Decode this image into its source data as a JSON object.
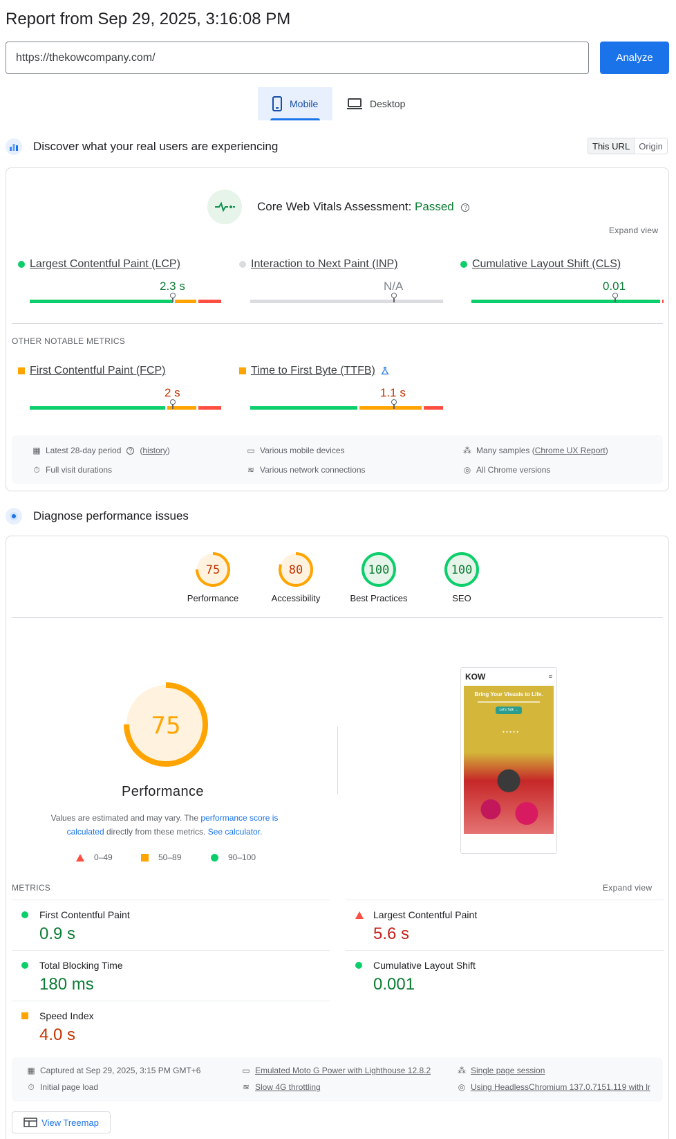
{
  "header": {
    "title": "Report from Sep 29, 2025, 3:16:08 PM",
    "url_value": "https://thekowcompany.com/",
    "analyze_label": "Analyze",
    "tabs": [
      {
        "label": "Mobile",
        "icon": "phone-icon",
        "active": true
      },
      {
        "label": "Desktop",
        "icon": "laptop-icon",
        "active": false
      }
    ]
  },
  "field": {
    "heading": "Discover what your real users are experiencing",
    "toggle": [
      "This URL",
      "Origin"
    ],
    "assessment_label": "Core Web Vitals Assessment: ",
    "assessment_status": "Passed",
    "expand_label": "Expand view",
    "core_metrics": [
      {
        "name": "Largest Contentful Paint (LCP)",
        "value": "2.3 s",
        "status": "good",
        "position": 0.75,
        "dist": [
          0.75,
          0.12,
          0.13
        ]
      },
      {
        "name": "Interaction to Next Paint (INP)",
        "value": "N/A",
        "status": "na",
        "position": 0.75
      },
      {
        "name": "Cumulative Layout Shift (CLS)",
        "value": "0.01",
        "status": "good",
        "position": 0.75,
        "dist": [
          0.99,
          0.0,
          0.01
        ]
      }
    ],
    "other_label": "OTHER NOTABLE METRICS",
    "other_metrics": [
      {
        "name": "First Contentful Paint (FCP)",
        "value": "2 s",
        "status": "average",
        "position": 0.75,
        "dist": [
          0.71,
          0.16,
          0.13
        ]
      },
      {
        "name": "Time to First Byte (TTFB)",
        "value": "1.1 s",
        "status": "average",
        "position": 0.75,
        "dist": [
          0.56,
          0.34,
          0.1
        ]
      }
    ],
    "info": {
      "period": "Latest 28-day period",
      "history": "history",
      "devices": "Various mobile devices",
      "samples_prefix": "Many samples (",
      "samples_link": "Chrome UX Report",
      "samples_suffix": ")",
      "durations": "Full visit durations",
      "network": "Various network connections",
      "chrome": "All Chrome versions"
    }
  },
  "lab": {
    "heading": "Diagnose performance issues",
    "scores": [
      {
        "label": "Performance",
        "score": 75,
        "status": "average"
      },
      {
        "label": "Accessibility",
        "score": 80,
        "status": "average"
      },
      {
        "label": "Best Practices",
        "score": 100,
        "status": "good"
      },
      {
        "label": "SEO",
        "score": 100,
        "status": "good"
      }
    ],
    "big_score": "75",
    "big_label": "Performance",
    "note_1": "Values are estimated and may vary. The ",
    "note_link_1": "performance score is calculated",
    "note_2": " directly from these metrics. ",
    "note_link_2": "See calculator.",
    "legend": [
      "0–49",
      "50–89",
      "90–100"
    ],
    "screenshot": {
      "logo": "KOW",
      "headline": "Bring Your Visuals to Life.",
      "cta": "Let's Talk →"
    },
    "metrics_label": "METRICS",
    "expand_label": "Expand view",
    "metrics": [
      {
        "name": "First Contentful Paint",
        "value": "0.9 s",
        "status": "good"
      },
      {
        "name": "Largest Contentful Paint",
        "value": "5.6 s",
        "status": "poor"
      },
      {
        "name": "Total Blocking Time",
        "value": "180 ms",
        "status": "good"
      },
      {
        "name": "Cumulative Layout Shift",
        "value": "0.001",
        "status": "good"
      },
      {
        "name": "Speed Index",
        "value": "4.0 s",
        "status": "average"
      }
    ],
    "env": {
      "captured": "Captured at Sep 29, 2025, 3:15 PM GMT+6",
      "device": "Emulated Moto G Power with Lighthouse 12.8.2",
      "session": "Single page session",
      "load": "Initial page load",
      "throttle": "Slow 4G throttling",
      "browser": "Using HeadlessChromium 137.0.7151.119 with lr"
    },
    "treemap_label": "View Treemap"
  },
  "colors": {
    "good": "#0cce6b",
    "average": "#ffa400",
    "poor": "#ff4e42",
    "accent": "#1a73e8"
  }
}
